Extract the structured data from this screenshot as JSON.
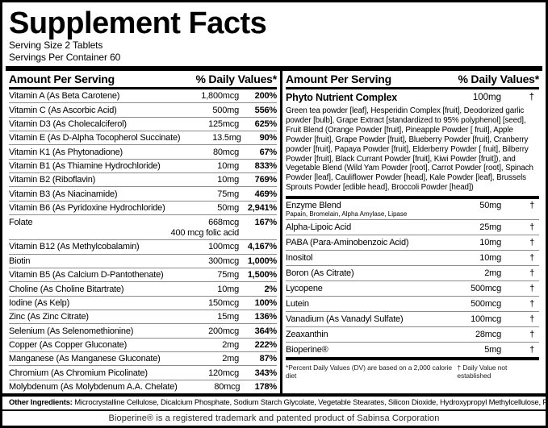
{
  "title": "Supplement Facts",
  "serving_size": "Serving Size 2 Tablets",
  "servings_per_container": "Servings Per Container 60",
  "colors": {
    "text": "#000000",
    "background": "#ffffff",
    "separator": "#8c8c8c"
  },
  "left_column": {
    "header": {
      "amount": "Amount Per Serving",
      "dv": "% Daily Values*"
    },
    "rows": [
      {
        "name": "Vitamin A (As Beta Carotene)",
        "amount": "1,800mcg",
        "dv": "200%"
      },
      {
        "name": "Vitamin C (As Ascorbic Acid)",
        "amount": "500mg",
        "dv": "556%"
      },
      {
        "name": "Vitamin D3 (As Cholecalciferol)",
        "amount": "125mcg",
        "dv": "625%"
      },
      {
        "name": "Vitamin E (As D-Alpha Tocopherol Succinate)",
        "amount": "13.5mg",
        "dv": "90%"
      },
      {
        "name": "Vitamin K1 (As Phytonadione)",
        "amount": "80mcg",
        "dv": "67%"
      },
      {
        "name": "Vitamin B1 (As Thiamine Hydrochloride)",
        "amount": "10mg",
        "dv": "833%"
      },
      {
        "name": "Vitamin B2 (Riboflavin)",
        "amount": "10mg",
        "dv": "769%"
      },
      {
        "name": "Vitamin B3 (As Niacinamide)",
        "amount": "75mg",
        "dv": "469%"
      },
      {
        "name": "Vitamin B6 (As Pyridoxine Hydrochloride)",
        "amount": "50mg",
        "dv": "2,941%"
      },
      {
        "name": "Folate",
        "amount": "668mcg",
        "dv": "167%",
        "note": "400 mcg folic acid"
      },
      {
        "name": "Vitamin B12 (As Methylcobalamin)",
        "amount": "100mcg",
        "dv": "4,167%"
      },
      {
        "name": "Biotin",
        "amount": "300mcg",
        "dv": "1,000%"
      },
      {
        "name": "Vitamin B5 (As Calcium D-Pantothenate)",
        "amount": "75mg",
        "dv": "1,500%"
      },
      {
        "name": "Choline (As Choline Bitartrate)",
        "amount": "10mg",
        "dv": "2%"
      },
      {
        "name": "Iodine (As Kelp)",
        "amount": "150mcg",
        "dv": "100%"
      },
      {
        "name": "Zinc (As Zinc Citrate)",
        "amount": "15mg",
        "dv": "136%"
      },
      {
        "name": "Selenium (As Selenomethionine)",
        "amount": "200mcg",
        "dv": "364%"
      },
      {
        "name": "Copper (As Copper Gluconate)",
        "amount": "2mg",
        "dv": "222%"
      },
      {
        "name": "Manganese (As Manganese Gluconate)",
        "amount": "2mg",
        "dv": "87%"
      },
      {
        "name": "Chromium (As Chromium Picolinate)",
        "amount": "120mcg",
        "dv": "343%"
      },
      {
        "name": "Molybdenum (As Molybdenum A.A. Chelate)",
        "amount": "80mcg",
        "dv": "178%"
      }
    ]
  },
  "right_column": {
    "header": {
      "amount": "Amount Per Serving",
      "dv": "% Daily Values*"
    },
    "complex": {
      "name": "Phyto Nutrient Complex",
      "amount": "100mg",
      "dv": "†",
      "description": "Green tea powder [leaf], Hesperidin Complex [fruit], Deodorized garlic powder [bulb], Grape Extract [standardized to 95% polyphenol] [seed], Fruit Blend (Orange Powder [fruit], Pineapple Powder [ fruit], Apple Powder [fruit], Grape Powder [fruit], Blueberry Powder [fruit], Cranberry powder [fruit], Papaya Powder [fruit], Elderberry Powder [ fruit], Bilberry Powder [fruit], Black Currant Powder [fruit], Kiwi Powder [fruit]), and Vegetable Blend (Wild Yam Powder [root], Carrot Powder [root], Spinach Powder [leaf], Cauliflower Powder [head], Kale Powder [leaf], Brussels Sprouts Powder [edible head], Broccoli Powder [head])"
    },
    "rows": [
      {
        "name": "Enzyme Blend",
        "sub": "Papain, Bromelain, Alpha Amylase, Lipase",
        "amount": "50mg",
        "dv": "†"
      },
      {
        "name": "Alpha-Lipoic Acid",
        "amount": "25mg",
        "dv": "†"
      },
      {
        "name": "PABA (Para-Aminobenzoic Acid)",
        "amount": "10mg",
        "dv": "†"
      },
      {
        "name": "Inositol",
        "amount": "10mg",
        "dv": "†"
      },
      {
        "name": "Boron (As Citrate)",
        "amount": "2mg",
        "dv": "†"
      },
      {
        "name": "Lycopene",
        "amount": "500mcg",
        "dv": "†"
      },
      {
        "name": "Lutein",
        "amount": "500mcg",
        "dv": "†"
      },
      {
        "name": "Vanadium (As Vanadyl Sulfate)",
        "amount": "100mcg",
        "dv": "†"
      },
      {
        "name": "Zeaxanthin",
        "amount": "28mcg",
        "dv": "†"
      },
      {
        "name": "Bioperine®",
        "amount": "5mg",
        "dv": "†"
      }
    ],
    "footnotes": {
      "daily_value": "*Percent Daily Values (DV) are based on a 2,000 calorie diet",
      "not_established": "† Daily Value not established"
    }
  },
  "other_ingredients": {
    "label": "Other Ingredients:",
    "text": " Microcrystalline Cellulose, Dicalcium Phosphate, Sodium Starch Glycolate, Vegetable Stearates, Silicon Dioxide, Hydroxypropyl Methylcellulose, PEG"
  },
  "trademark": "Bioperine® is a registered trademark and patented product of Sabinsa Corporation"
}
